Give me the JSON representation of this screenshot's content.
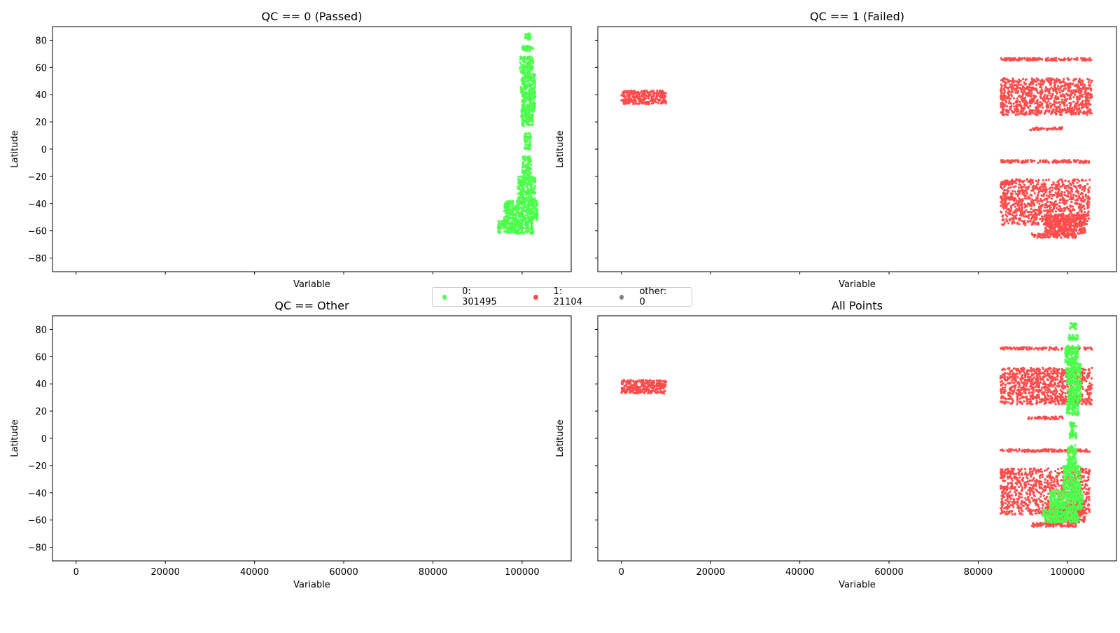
{
  "colors": {
    "passed": "#4dff4d",
    "failed": "#ff4d4d",
    "other": "#808080"
  },
  "legend": {
    "items": [
      {
        "label": "0: 301495",
        "color": "#4dff4d"
      },
      {
        "label": "1: 21104",
        "color": "#ff4d4d"
      },
      {
        "label": "other: 0",
        "color": "#808080"
      }
    ],
    "placement": "center"
  },
  "chart_data": [
    {
      "type": "scatter",
      "title": "QC == 0 (Passed)",
      "xlabel": "Variable",
      "ylabel": "Latitude",
      "xlim": [
        -5300,
        111000
      ],
      "ylim": [
        -90,
        90
      ],
      "xticks": [
        0,
        20000,
        40000,
        60000,
        80000,
        100000
      ],
      "xtick_labels_visible": false,
      "yticks": [
        -80,
        -60,
        -40,
        -20,
        0,
        20,
        40,
        60,
        80
      ],
      "ytick_labels_visible": true,
      "grid": false,
      "series": [
        {
          "name": "0",
          "color": "#4dff4d",
          "clusters": [
            {
              "x": [
                100500,
                102000
              ],
              "y": [
                80,
                85
              ]
            },
            {
              "x": [
                100000,
                102500
              ],
              "y": [
                72,
                76
              ]
            },
            {
              "x": [
                99500,
                102500
              ],
              "y": [
                55,
                68
              ]
            },
            {
              "x": [
                99700,
                103000
              ],
              "y": [
                40,
                55
              ]
            },
            {
              "x": [
                100000,
                103000
              ],
              "y": [
                28,
                42
              ]
            },
            {
              "x": [
                99800,
                102500
              ],
              "y": [
                17,
                30
              ]
            },
            {
              "x": [
                100500,
                102000
              ],
              "y": [
                0,
                12
              ]
            },
            {
              "x": [
                100000,
                102000
              ],
              "y": [
                -20,
                -5
              ]
            },
            {
              "x": [
                99000,
                103000
              ],
              "y": [
                -38,
                -20
              ]
            },
            {
              "x": [
                96000,
                103500
              ],
              "y": [
                -52,
                -38
              ]
            },
            {
              "x": [
                94500,
                102500
              ],
              "y": [
                -62,
                -52
              ]
            }
          ]
        }
      ]
    },
    {
      "type": "scatter",
      "title": "QC == 1 (Failed)",
      "xlabel": "Variable",
      "ylabel": "Latitude",
      "xlim": [
        -5300,
        111000
      ],
      "ylim": [
        -90,
        90
      ],
      "xticks": [
        0,
        20000,
        40000,
        60000,
        80000,
        100000
      ],
      "xtick_labels_visible": false,
      "yticks": [
        -80,
        -60,
        -40,
        -20,
        0,
        20,
        40,
        60,
        80
      ],
      "ytick_labels_visible": false,
      "grid": false,
      "series": [
        {
          "name": "1",
          "color": "#ff4d4d",
          "clusters": [
            {
              "x": [
                0,
                10000
              ],
              "y": [
                33,
                43
              ]
            },
            {
              "x": [
                85000,
                105500
              ],
              "y": [
                65,
                67
              ]
            },
            {
              "x": [
                85000,
                105500
              ],
              "y": [
                25,
                52
              ]
            },
            {
              "x": [
                97000,
                101000
              ],
              "y": [
                27,
                29
              ]
            },
            {
              "x": [
                91000,
                99000
              ],
              "y": [
                14,
                16
              ]
            },
            {
              "x": [
                85000,
                105000
              ],
              "y": [
                -10,
                -8
              ]
            },
            {
              "x": [
                85000,
                88000
              ],
              "y": [
                -26,
                -24
              ]
            },
            {
              "x": [
                85000,
                88000
              ],
              "y": [
                -37,
                -35
              ]
            },
            {
              "x": [
                85000,
                105000
              ],
              "y": [
                -56,
                -22
              ]
            },
            {
              "x": [
                95000,
                104000
              ],
              "y": [
                -62,
                -48
              ]
            },
            {
              "x": [
                92000,
                102000
              ],
              "y": [
                -65,
                -62
              ]
            }
          ]
        }
      ]
    },
    {
      "type": "scatter",
      "title": "QC == Other",
      "xlabel": "Variable",
      "ylabel": "Latitude",
      "xlim": [
        -5300,
        111000
      ],
      "ylim": [
        -90,
        90
      ],
      "xticks": [
        0,
        20000,
        40000,
        60000,
        80000,
        100000
      ],
      "xtick_labels_visible": true,
      "yticks": [
        -80,
        -60,
        -40,
        -20,
        0,
        20,
        40,
        60,
        80
      ],
      "ytick_labels_visible": true,
      "grid": false,
      "series": []
    },
    {
      "type": "scatter",
      "title": "All Points",
      "xlabel": "Variable",
      "ylabel": "Latitude",
      "xlim": [
        -5300,
        111000
      ],
      "ylim": [
        -90,
        90
      ],
      "xticks": [
        0,
        20000,
        40000,
        60000,
        80000,
        100000
      ],
      "xtick_labels_visible": true,
      "yticks": [
        -80,
        -60,
        -40,
        -20,
        0,
        20,
        40,
        60,
        80
      ],
      "ytick_labels_visible": false,
      "grid": false,
      "series": [
        {
          "name": "1",
          "color": "#ff4d4d",
          "clusters": [
            {
              "x": [
                0,
                10000
              ],
              "y": [
                33,
                43
              ]
            },
            {
              "x": [
                85000,
                105500
              ],
              "y": [
                65,
                67
              ]
            },
            {
              "x": [
                85000,
                105500
              ],
              "y": [
                25,
                52
              ]
            },
            {
              "x": [
                97000,
                101000
              ],
              "y": [
                27,
                29
              ]
            },
            {
              "x": [
                91000,
                99000
              ],
              "y": [
                14,
                16
              ]
            },
            {
              "x": [
                85000,
                105000
              ],
              "y": [
                -10,
                -8
              ]
            },
            {
              "x": [
                85000,
                88000
              ],
              "y": [
                -26,
                -24
              ]
            },
            {
              "x": [
                85000,
                88000
              ],
              "y": [
                -37,
                -35
              ]
            },
            {
              "x": [
                85000,
                105000
              ],
              "y": [
                -56,
                -22
              ]
            },
            {
              "x": [
                95000,
                104000
              ],
              "y": [
                -62,
                -48
              ]
            },
            {
              "x": [
                92000,
                102000
              ],
              "y": [
                -65,
                -62
              ]
            }
          ]
        },
        {
          "name": "0",
          "color": "#4dff4d",
          "clusters": [
            {
              "x": [
                100500,
                102000
              ],
              "y": [
                80,
                85
              ]
            },
            {
              "x": [
                100000,
                102500
              ],
              "y": [
                72,
                76
              ]
            },
            {
              "x": [
                99500,
                102500
              ],
              "y": [
                55,
                68
              ]
            },
            {
              "x": [
                99700,
                103000
              ],
              "y": [
                40,
                55
              ]
            },
            {
              "x": [
                100000,
                103000
              ],
              "y": [
                28,
                42
              ]
            },
            {
              "x": [
                99800,
                102500
              ],
              "y": [
                17,
                30
              ]
            },
            {
              "x": [
                100500,
                102000
              ],
              "y": [
                0,
                12
              ]
            },
            {
              "x": [
                100000,
                102000
              ],
              "y": [
                -20,
                -5
              ]
            },
            {
              "x": [
                99000,
                103000
              ],
              "y": [
                -38,
                -20
              ]
            },
            {
              "x": [
                96000,
                103500
              ],
              "y": [
                -52,
                -38
              ]
            },
            {
              "x": [
                94500,
                102500
              ],
              "y": [
                -62,
                -52
              ]
            }
          ]
        }
      ]
    }
  ]
}
